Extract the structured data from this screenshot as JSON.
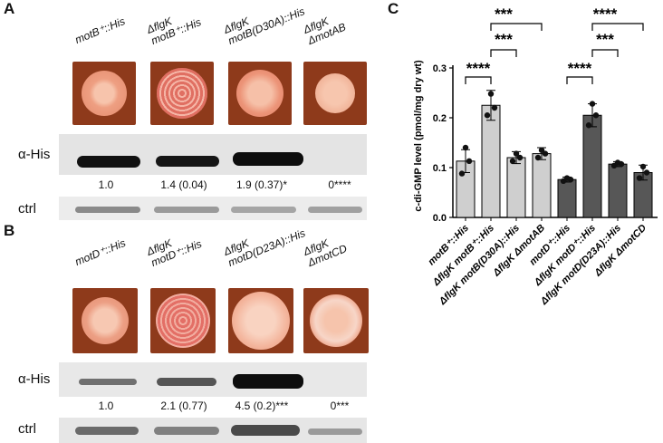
{
  "panelA": {
    "letter": "A",
    "strains": [
      {
        "line1": "motB⁺::His",
        "line2": ""
      },
      {
        "line1": "ΔflgK",
        "line2": "motB⁺::His"
      },
      {
        "line1": "ΔflgK",
        "line2": "motB(D30A)::His"
      },
      {
        "line1": "ΔflgK",
        "line2": "ΔmotAB"
      }
    ],
    "blot_label": "α-His",
    "ctrl_label": "ctrl",
    "quant": [
      "1.0",
      "1.4 (0.04)",
      "1.9 (0.37)*",
      "0****"
    ]
  },
  "panelB": {
    "letter": "B",
    "strains": [
      {
        "line1": "motD⁺::His",
        "line2": ""
      },
      {
        "line1": "ΔflgK",
        "line2": "motD⁺::His"
      },
      {
        "line1": "ΔflgK",
        "line2": "motD(D23A)::His"
      },
      {
        "line1": "ΔflgK",
        "line2": "ΔmotCD"
      }
    ],
    "blot_label": "α-His",
    "ctrl_label": "ctrl",
    "quant": [
      "1.0",
      "2.1 (0.77)",
      "4.5 (0.2)***",
      "0***"
    ]
  },
  "panelC": {
    "letter": "C",
    "ylabel": "c-di-GMP level (pmol/mg dry wt)",
    "sig": [
      "****",
      "***",
      "***",
      "****",
      "***",
      "****"
    ]
  },
  "chart_data": {
    "type": "bar",
    "title": "",
    "xlabel": "",
    "ylabel": "c-di-GMP level (pmol/mg dry wt)",
    "ylim": [
      0,
      0.3
    ],
    "yticks": [
      "0.0",
      "0.1",
      "0.2",
      "0.3"
    ],
    "categories": [
      "motB⁺::His",
      "ΔflgK motB⁺::His",
      "ΔflgK motB(D30A)::His",
      "ΔflgK ΔmotAB",
      "motD⁺::His",
      "ΔflgK motD⁺::His",
      "ΔflgK motD(D23A)::His",
      "ΔflgK ΔmotCD"
    ],
    "values": [
      0.113,
      0.225,
      0.12,
      0.128,
      0.076,
      0.205,
      0.107,
      0.09
    ],
    "errors": [
      0.023,
      0.03,
      0.012,
      0.012,
      0.005,
      0.023,
      0.005,
      0.015
    ],
    "points": [
      [
        0.088,
        0.113,
        0.14
      ],
      [
        0.205,
        0.22,
        0.248
      ],
      [
        0.113,
        0.12,
        0.128
      ],
      [
        0.12,
        0.128,
        0.135
      ],
      [
        0.073,
        0.076,
        0.079
      ],
      [
        0.185,
        0.205,
        0.228
      ],
      [
        0.104,
        0.107,
        0.11
      ],
      [
        0.079,
        0.09,
        0.102
      ]
    ],
    "colors": [
      "#cfcfcf",
      "#cfcfcf",
      "#cfcfcf",
      "#cfcfcf",
      "#575757",
      "#575757",
      "#575757",
      "#575757"
    ]
  }
}
